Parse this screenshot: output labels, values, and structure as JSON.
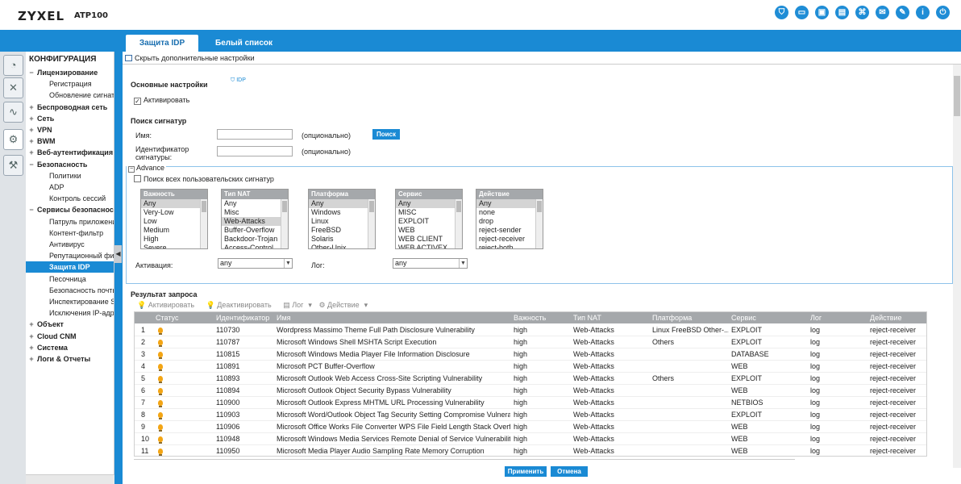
{
  "header": {
    "logo": "ZYXEL",
    "model": "ATP100"
  },
  "top_icons": [
    "shield-icon",
    "monitor-icon",
    "window-icon",
    "browser-icon",
    "network-icon",
    "chat-icon",
    "edit-icon",
    "info-icon",
    "power-icon"
  ],
  "tabs": [
    {
      "label": "Защита IDP"
    },
    {
      "label": "Белый список"
    }
  ],
  "sidebar": {
    "title": "КОНФИГУРАЦИЯ",
    "items": [
      {
        "sign": "−",
        "label": "Лицензирование",
        "level": 1
      },
      {
        "sign": "",
        "label": "Регистрация",
        "level": 2
      },
      {
        "sign": "",
        "label": "Обновление сигнатур",
        "level": 2
      },
      {
        "sign": "+",
        "label": "Беспроводная сеть",
        "level": 1
      },
      {
        "sign": "+",
        "label": "Сеть",
        "level": 1
      },
      {
        "sign": "+",
        "label": "VPN",
        "level": 1
      },
      {
        "sign": "+",
        "label": "BWM",
        "level": 1
      },
      {
        "sign": "+",
        "label": "Веб-аутентификация",
        "level": 1
      },
      {
        "sign": "−",
        "label": "Безопасность",
        "level": 1
      },
      {
        "sign": "",
        "label": "Политики",
        "level": 2
      },
      {
        "sign": "",
        "label": "ADP",
        "level": 2
      },
      {
        "sign": "",
        "label": "Контроль сессий",
        "level": 2
      },
      {
        "sign": "−",
        "label": "Сервисы безопасности",
        "level": 1
      },
      {
        "sign": "",
        "label": "Патруль приложений",
        "level": 2
      },
      {
        "sign": "",
        "label": "Контент-фильтр",
        "level": 2
      },
      {
        "sign": "",
        "label": "Антивирус",
        "level": 2
      },
      {
        "sign": "",
        "label": "Репутационный фильтр",
        "level": 2
      },
      {
        "sign": "",
        "label": "Защита IDP",
        "level": 2,
        "active": true
      },
      {
        "sign": "",
        "label": "Песочница",
        "level": 2
      },
      {
        "sign": "",
        "label": "Безопасность почты",
        "level": 2
      },
      {
        "sign": "",
        "label": "Инспектирование SSL",
        "level": 2
      },
      {
        "sign": "",
        "label": "Исключения IP-адресов",
        "level": 2
      },
      {
        "sign": "+",
        "label": "Объект",
        "level": 1
      },
      {
        "sign": "+",
        "label": "Cloud CNM",
        "level": 1
      },
      {
        "sign": "+",
        "label": "Система",
        "level": 1
      },
      {
        "sign": "+",
        "label": "Логи & Отчеты",
        "level": 1
      }
    ]
  },
  "main": {
    "hide_link": "Скрыть дополнительные настройки",
    "basic": {
      "title": "Основные настройки",
      "idp_badge": "IDP",
      "activate_label": "Активировать",
      "activate_checked": true
    },
    "search": {
      "title": "Поиск сигнатур",
      "name_label": "Имя:",
      "name_value": "",
      "optional": "(опционально)",
      "search_button": "Поиск",
      "sigid_label": "Идентификатор сигнатуры:",
      "sigid_value": ""
    },
    "advance": {
      "label": "Advance",
      "toggle": "−",
      "search_all_label": "Поиск всех пользовательских сигнатур",
      "search_all_checked": false,
      "lists": [
        {
          "header": "Важность",
          "options": [
            "Any",
            "Very-Low",
            "Low",
            "Medium",
            "High",
            "Severe"
          ],
          "selected": "Any"
        },
        {
          "header": "Тип NAT",
          "options": [
            "Any",
            "Misc",
            "Web-Attacks",
            "Buffer-Overflow",
            "Backdoor-Trojan",
            "Access-Control"
          ],
          "selected": "Web-Attacks"
        },
        {
          "header": "Платформа",
          "options": [
            "Any",
            "Windows",
            "Linux",
            "FreeBSD",
            "Solaris",
            "Other-Unix"
          ],
          "selected": "Any"
        },
        {
          "header": "Сервис",
          "options": [
            "Any",
            "MISC",
            "EXPLOIT",
            "WEB",
            "WEB CLIENT",
            "WEB ACTIVEX"
          ],
          "selected": "Any"
        },
        {
          "header": "Действие",
          "options": [
            "Any",
            "none",
            "drop",
            "reject-sender",
            "reject-receiver",
            "reject-both"
          ],
          "selected": "Any"
        }
      ],
      "activation_label": "Активация:",
      "activation_value": "any",
      "log_label": "Лог:",
      "log_value": "any"
    },
    "results": {
      "title": "Результат запроса",
      "toolbar": {
        "activate": "Активировать",
        "deactivate": "Деактивировать",
        "log": "Лог",
        "action": "Действие"
      },
      "columns": [
        "Статус",
        "Идентификатор",
        "Имя",
        "Важность",
        "Тип NAT",
        "Платформа",
        "Сервис",
        "Лог",
        "Действие"
      ],
      "rows": [
        {
          "n": "1",
          "id": "110730",
          "name": "Wordpress Massimo Theme Full Path Disclosure Vulnerability",
          "sev": "high",
          "nat": "Web-Attacks",
          "plat": "Linux FreeBSD Other-...",
          "svc": "EXPLOIT",
          "log": "log",
          "act": "reject-receiver"
        },
        {
          "n": "2",
          "id": "110787",
          "name": "Microsoft Windows Shell MSHTA Script Execution",
          "sev": "high",
          "nat": "Web-Attacks",
          "plat": "Others",
          "svc": "EXPLOIT",
          "log": "log",
          "act": "reject-receiver"
        },
        {
          "n": "3",
          "id": "110815",
          "name": "Microsoft Windows Media Player File Information Disclosure",
          "sev": "high",
          "nat": "Web-Attacks",
          "plat": "",
          "svc": "DATABASE",
          "log": "log",
          "act": "reject-receiver"
        },
        {
          "n": "4",
          "id": "110891",
          "name": "Microsoft PCT Buffer-Overflow",
          "sev": "high",
          "nat": "Web-Attacks",
          "plat": "",
          "svc": "WEB",
          "log": "log",
          "act": "reject-receiver"
        },
        {
          "n": "5",
          "id": "110893",
          "name": "Microsoft Outlook Web Access Cross-Site Scripting Vulnerability",
          "sev": "high",
          "nat": "Web-Attacks",
          "plat": "Others",
          "svc": "EXPLOIT",
          "log": "log",
          "act": "reject-receiver"
        },
        {
          "n": "6",
          "id": "110894",
          "name": "Microsoft Outlook Object Security Bypass Vulnerability",
          "sev": "high",
          "nat": "Web-Attacks",
          "plat": "",
          "svc": "WEB",
          "log": "log",
          "act": "reject-receiver"
        },
        {
          "n": "7",
          "id": "110900",
          "name": "Microsoft Outlook Express MHTML URL Processing Vulnerability",
          "sev": "high",
          "nat": "Web-Attacks",
          "plat": "",
          "svc": "NETBIOS",
          "log": "log",
          "act": "reject-receiver"
        },
        {
          "n": "8",
          "id": "110903",
          "name": "Microsoft Word/Outlook Object Tag Security Setting Compromise Vulnera...",
          "sev": "high",
          "nat": "Web-Attacks",
          "plat": "",
          "svc": "EXPLOIT",
          "log": "log",
          "act": "reject-receiver"
        },
        {
          "n": "9",
          "id": "110906",
          "name": "Microsoft Office Works File Converter WPS File Field Length Stack Overflow",
          "sev": "high",
          "nat": "Web-Attacks",
          "plat": "",
          "svc": "WEB",
          "log": "log",
          "act": "reject-receiver"
        },
        {
          "n": "10",
          "id": "110948",
          "name": "Microsoft Windows Media Services Remote Denial of Service Vulnerability",
          "sev": "high",
          "nat": "Web-Attacks",
          "plat": "",
          "svc": "WEB",
          "log": "log",
          "act": "reject-receiver"
        },
        {
          "n": "11",
          "id": "110950",
          "name": "Microsoft Media Player Audio Sampling Rate Memory Corruption",
          "sev": "high",
          "nat": "Web-Attacks",
          "plat": "",
          "svc": "WEB",
          "log": "log",
          "act": "reject-receiver"
        }
      ]
    },
    "apply_button": "Применить",
    "cancel_button": "Отмена"
  },
  "colors": {
    "accent": "#1a8ad4",
    "header_gray": "#a5a8ab",
    "status_bulb": "#f3a514"
  }
}
